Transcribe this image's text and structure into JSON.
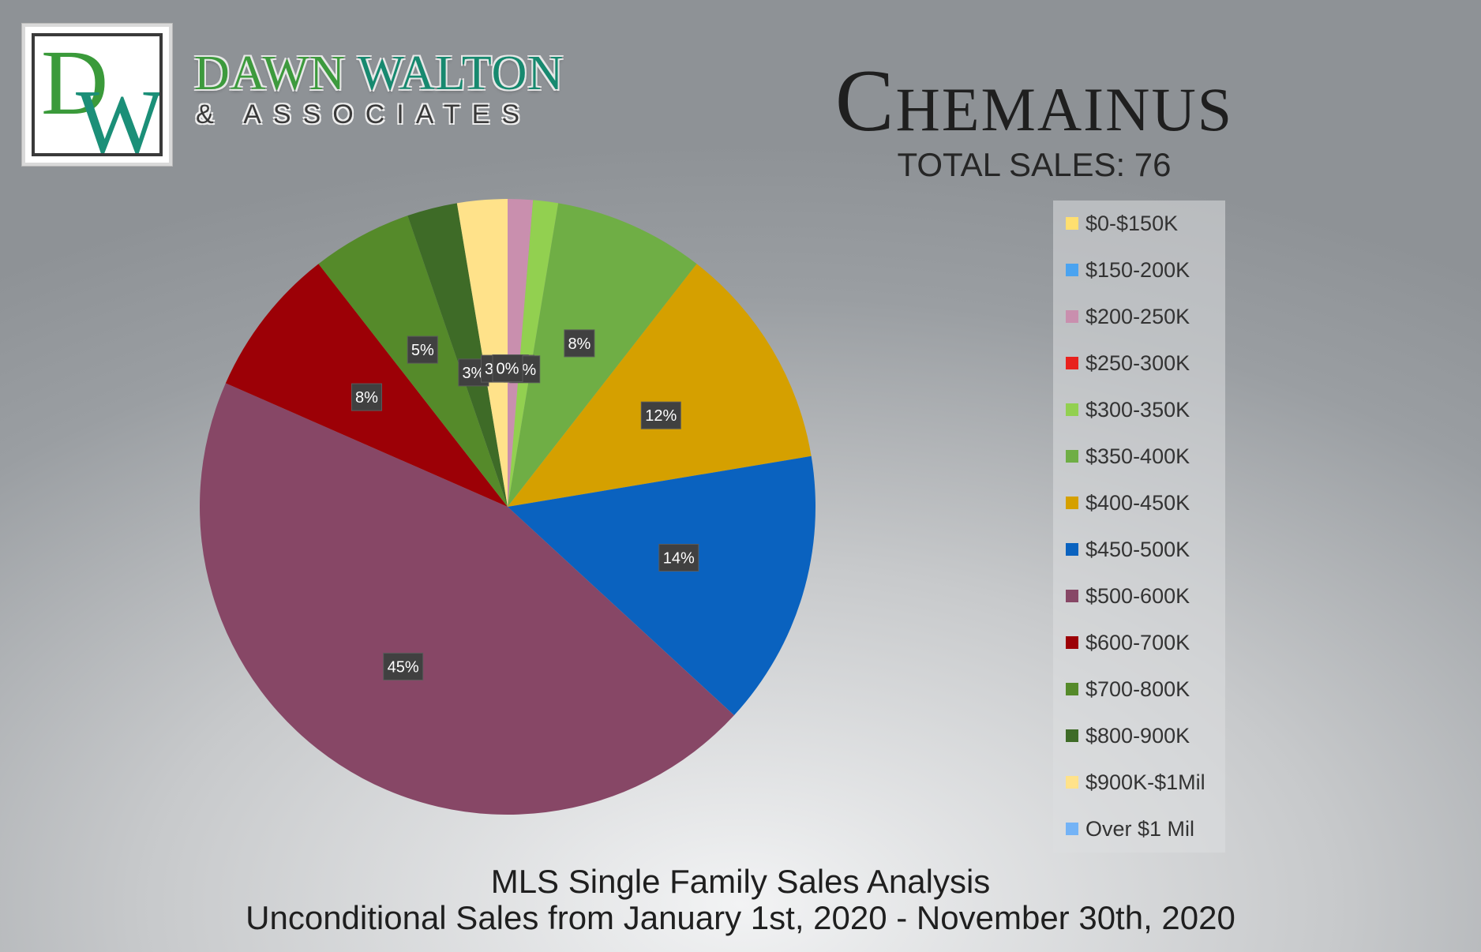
{
  "brand": {
    "logo_letters": "DW",
    "name_part1": "DAWN",
    "name_part2": "WALTON",
    "subtitle": "& ASSOCIATES"
  },
  "header": {
    "title": "Chemainus",
    "total_sales": "TOTAL SALES: 76"
  },
  "footer": {
    "line1": "MLS Single Family Sales Analysis",
    "line2": "Unconditional Sales from January 1st, 2020 - November 30th, 2020"
  },
  "chart_data": {
    "type": "pie",
    "title": "Chemainus",
    "legend_position": "right",
    "categories": [
      "$0-$150K",
      "$150-200K",
      "$200-250K",
      "$250-300K",
      "$300-350K",
      "$350-400K",
      "$400-450K",
      "$450-500K",
      "$500-600K",
      "$600-700K",
      "$700-800K",
      "$800-900K",
      "$900K-$1Mil",
      "Over $1 Mil"
    ],
    "values": [
      0,
      0,
      1,
      0,
      1,
      6,
      9,
      11,
      34,
      6,
      4,
      2,
      2,
      0
    ],
    "percent_labels": [
      "0%",
      "0%",
      "1%",
      "0%",
      "1%",
      "8%",
      "12%",
      "14%",
      "45%",
      "8%",
      "5%",
      "3%",
      "3%",
      "0%"
    ],
    "colors": [
      "#ffdf70",
      "#4aa3f0",
      "#c98fae",
      "#e8211d",
      "#92d050",
      "#6fae45",
      "#d5a000",
      "#0a62bf",
      "#874766",
      "#9c0006",
      "#558a2a",
      "#3e6b27",
      "#ffe28a",
      "#74b3f6"
    ]
  }
}
